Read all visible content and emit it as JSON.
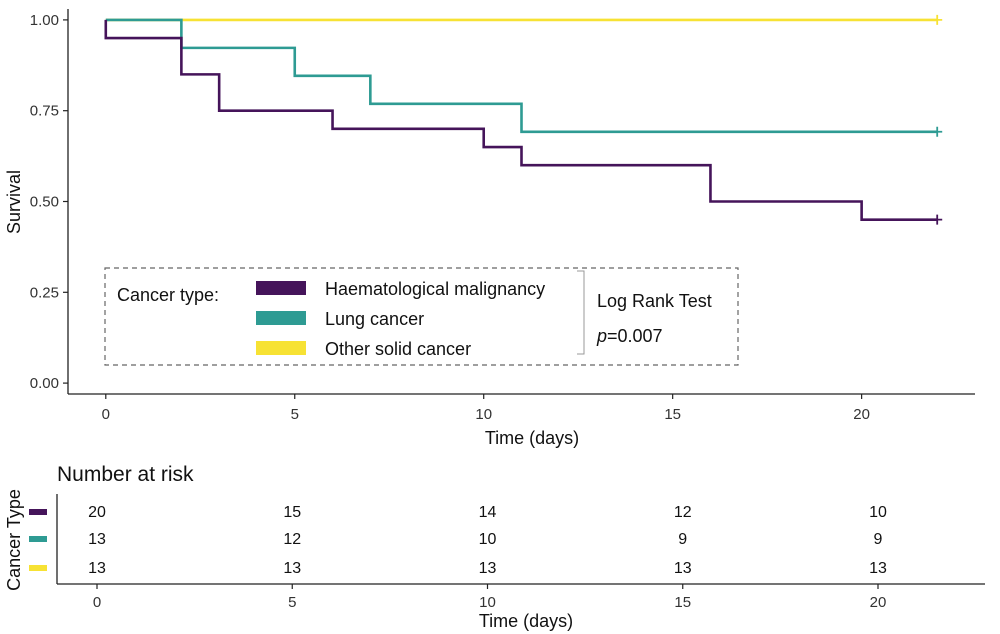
{
  "chart_data": {
    "type": "line",
    "subtype": "kaplan-meier",
    "ylabel": "Survival",
    "xlabel": "Time (days)",
    "xlim": [
      -1,
      23
    ],
    "ylim": [
      -0.03,
      1.03
    ],
    "x_ticks": [
      0,
      5,
      10,
      15,
      20
    ],
    "y_ticks": [
      0.0,
      0.25,
      0.5,
      0.75,
      1.0
    ],
    "y_tick_labels": [
      "0.00",
      "0.25",
      "0.50",
      "0.75",
      "1.00"
    ],
    "grid": false,
    "series": [
      {
        "name": "Haematological malignancy",
        "color": "#45145a",
        "steps": [
          [
            0,
            1.0
          ],
          [
            0,
            0.95
          ],
          [
            2,
            0.85
          ],
          [
            3,
            0.75
          ],
          [
            6,
            0.7
          ],
          [
            10,
            0.65
          ],
          [
            11,
            0.6
          ],
          [
            16,
            0.5
          ],
          [
            20,
            0.45
          ],
          [
            22,
            0.45
          ]
        ],
        "censor": [
          [
            22,
            0.45
          ]
        ]
      },
      {
        "name": "Lung cancer",
        "color": "#2e9b93",
        "steps": [
          [
            0,
            1.0
          ],
          [
            2,
            0.923
          ],
          [
            5,
            0.846
          ],
          [
            7,
            0.769
          ],
          [
            11,
            0.692
          ],
          [
            22,
            0.692
          ]
        ],
        "censor": [
          [
            22,
            0.692
          ]
        ]
      },
      {
        "name": "Other solid cancer",
        "color": "#f7e234",
        "steps": [
          [
            0,
            1.0
          ],
          [
            22,
            1.0
          ]
        ],
        "censor": [
          [
            22,
            1.0
          ]
        ]
      }
    ],
    "legend": {
      "title": "Cancer type:",
      "placement": "bottom-left",
      "entries": [
        "Haematological malignancy",
        "Lung cancer",
        "Other solid cancer"
      ]
    },
    "annotation": {
      "line1": "Log Rank Test",
      "p_symbol": "p",
      "p_value": "=0.007"
    },
    "risk_table": {
      "title": "Number at risk",
      "ylabel": "Cancer Type",
      "xlabel": "Time (days)",
      "times": [
        0,
        5,
        10,
        15,
        20
      ],
      "rows": [
        {
          "color": "#45145a",
          "counts": [
            "20",
            "15",
            "14",
            "12",
            "10"
          ]
        },
        {
          "color": "#2e9b93",
          "counts": [
            "13",
            "12",
            "10",
            "9",
            "9"
          ]
        },
        {
          "color": "#f7e234",
          "counts": [
            "13",
            "13",
            "13",
            "13",
            "13"
          ]
        }
      ]
    }
  }
}
